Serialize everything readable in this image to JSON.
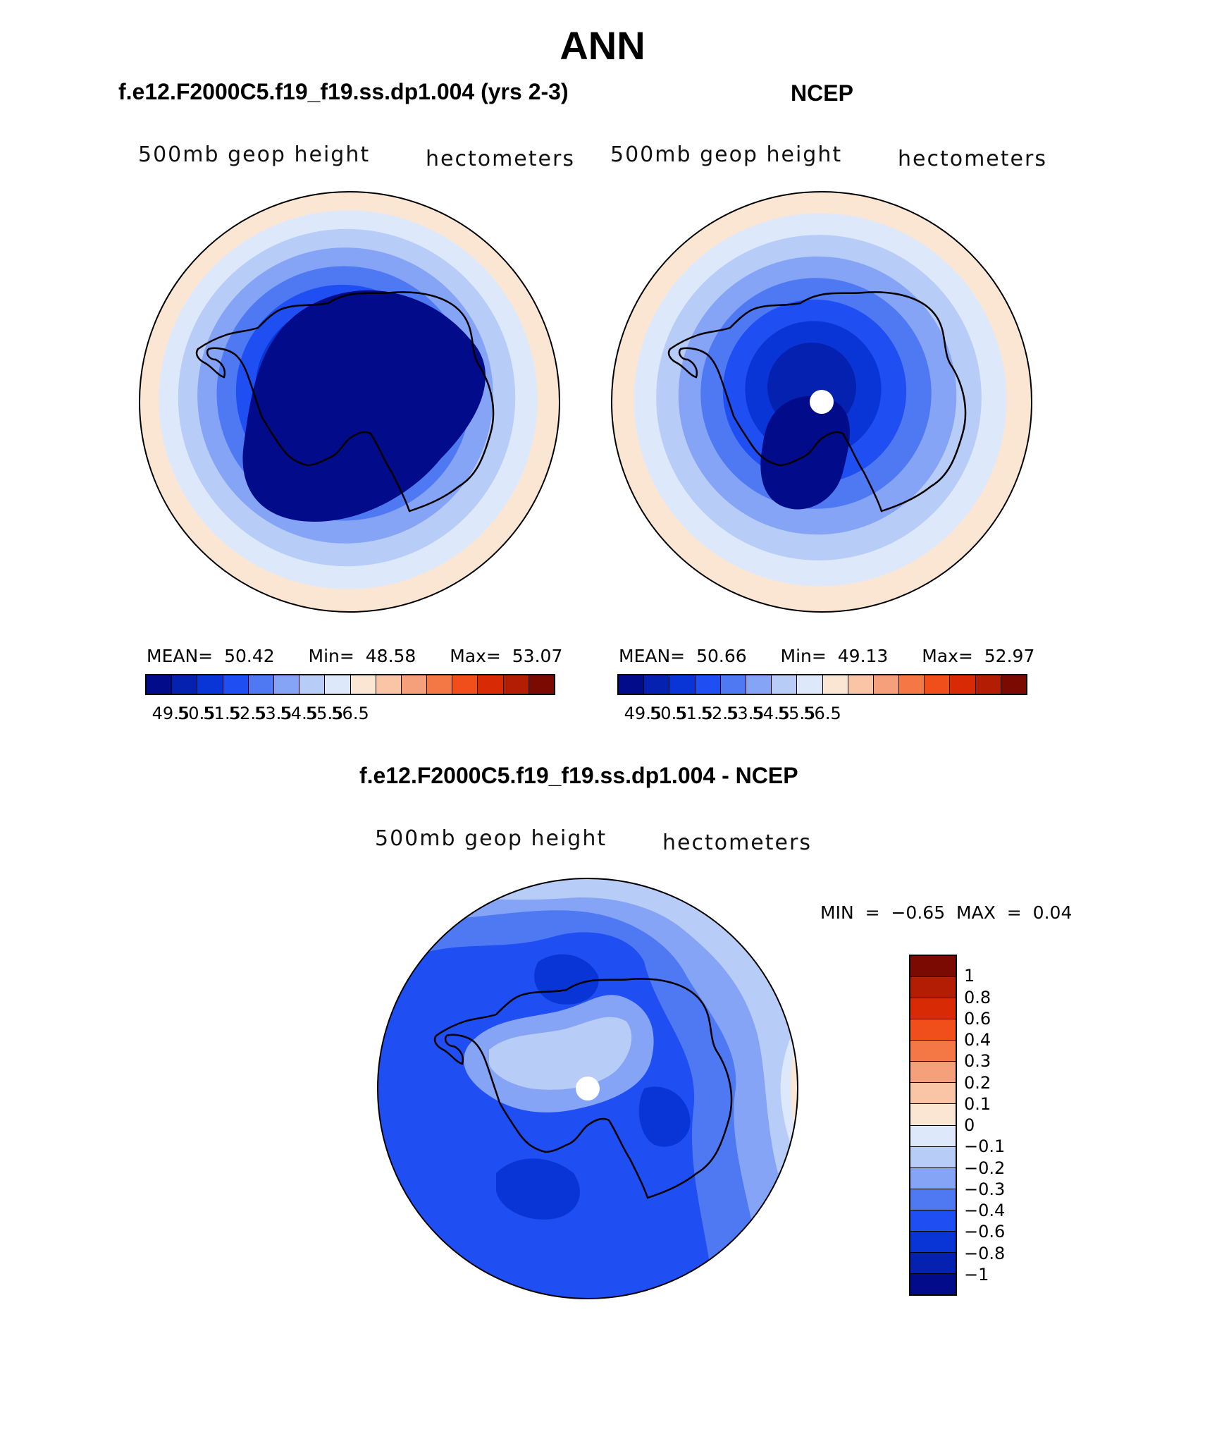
{
  "figure": {
    "title": "ANN"
  },
  "panels": [
    {
      "id": "model",
      "title": "f.e12.F2000C5.f19_f19.ss.dp1.004 (yrs 2-3)",
      "variable": "500mb geop height",
      "units": "hectometers",
      "stats": {
        "mean_label": "MEAN=",
        "mean": "50.42",
        "min_label": "Min=",
        "min": "48.58",
        "max_label": "Max=",
        "max": "53.07"
      }
    },
    {
      "id": "obs",
      "title": "NCEP",
      "variable": "500mb geop height",
      "units": "hectometers",
      "stats": {
        "mean_label": "MEAN=",
        "mean": "50.66",
        "min_label": "Min=",
        "min": "49.13",
        "max_label": "Max=",
        "max": "52.97"
      }
    },
    {
      "id": "diff",
      "title": "f.e12.F2000C5.f19_f19.ss.dp1.004 - NCEP",
      "variable": "500mb geop height",
      "units": "hectometers",
      "stats_line": "MIN =   −0.65 MAX =    0.04"
    }
  ],
  "colorbar_main": {
    "colors": [
      "#020b8a",
      "#0521b0",
      "#0a35d6",
      "#1f4ef2",
      "#4e79f2",
      "#85a4f5",
      "#b8ccf8",
      "#dde9fb",
      "#fbe6d4",
      "#f9c5a6",
      "#f5a07a",
      "#f47845",
      "#f04f1c",
      "#d92a06",
      "#b31d04",
      "#7a0a02"
    ],
    "tick_labels": [
      "49.5",
      "50.5",
      "51.5",
      "52.5",
      "53.5",
      "54.5",
      "55.5",
      "56.5"
    ]
  },
  "colorbar_diff": {
    "colors_top_to_bottom": [
      "#7a0a02",
      "#b31d04",
      "#d92a06",
      "#f04f1c",
      "#f47845",
      "#f5a07a",
      "#f9c5a6",
      "#fbe6d4",
      "#dde9fb",
      "#b8ccf8",
      "#85a4f5",
      "#4e79f2",
      "#1f4ef2",
      "#0a35d6",
      "#0521b0",
      "#020b8a"
    ],
    "tick_labels": [
      "1",
      "0.8",
      "0.6",
      "0.4",
      "0.3",
      "0.2",
      "0.1",
      "0",
      "−0.1",
      "−0.2",
      "−0.3",
      "−0.4",
      "−0.6",
      "−0.8",
      "−1"
    ]
  },
  "map_fields": {
    "model_rings": [
      "#fbe6d4",
      "#dde9fb",
      "#b8ccf8",
      "#85a4f5",
      "#4e79f2",
      "#1f4ef2",
      "#0a35d6",
      "#0521b0",
      "#020b8a"
    ],
    "obs_rings": [
      "#fbe6d4",
      "#dde9fb",
      "#b8ccf8",
      "#85a4f5",
      "#4e79f2",
      "#1f4ef2",
      "#0a35d6",
      "#0521b0",
      "#020b8a"
    ],
    "diff_base": "#1f4ef2",
    "pole_mask": "#ffffff",
    "coastline": "#000000"
  }
}
